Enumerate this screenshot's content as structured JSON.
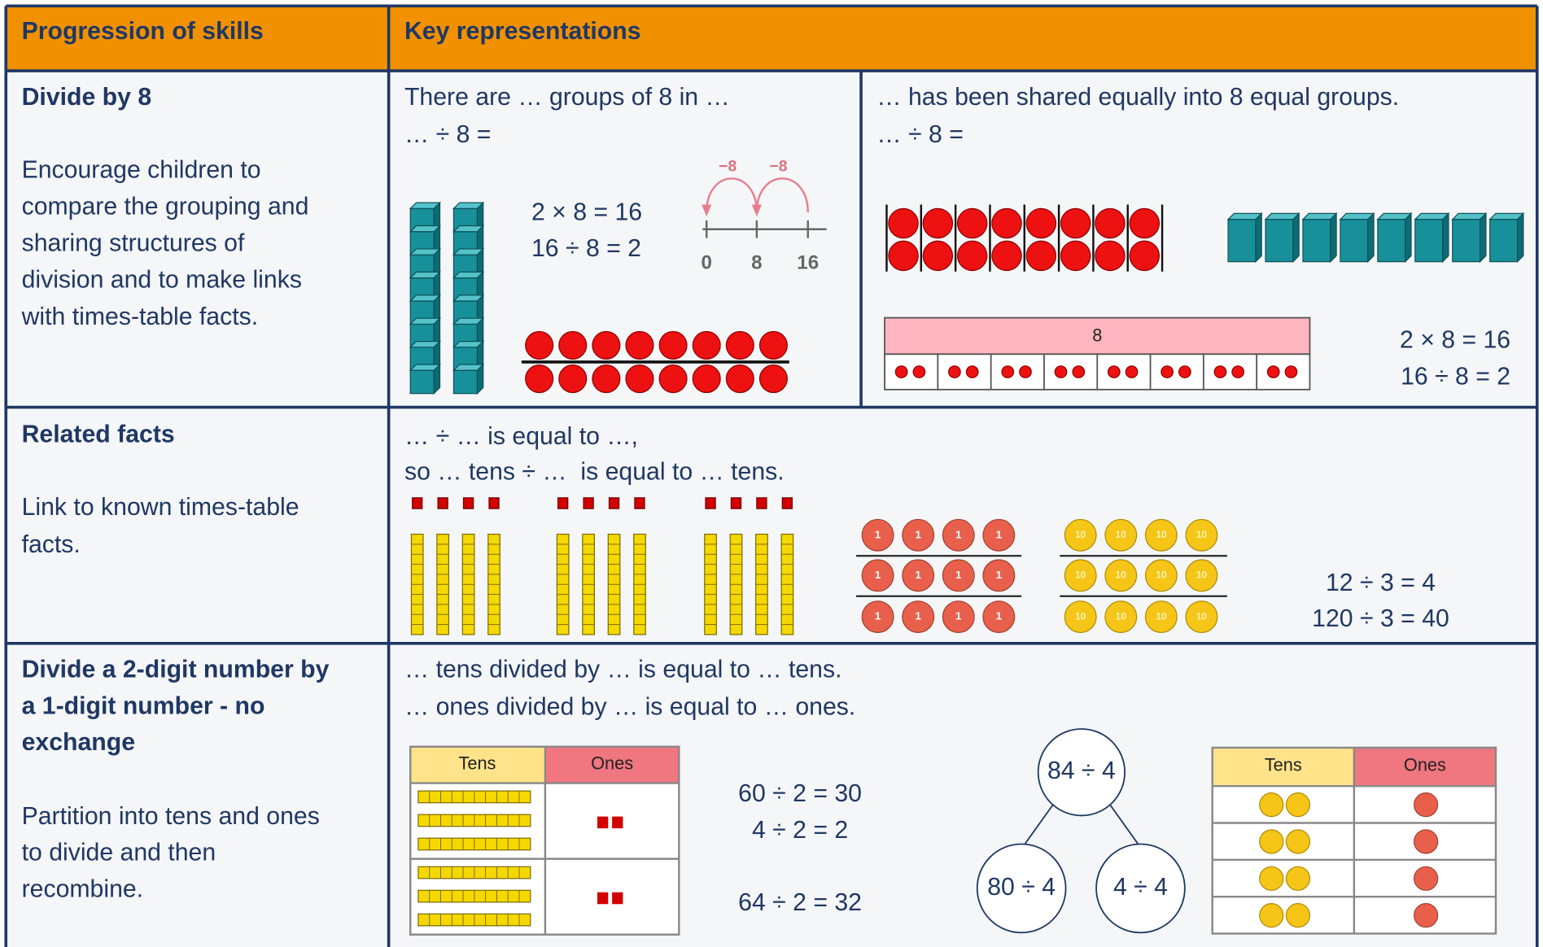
{
  "header": {
    "col1": "Progression of skills",
    "col2": "Key representations"
  },
  "rows": [
    {
      "skill": [
        "Divide by 8"
      ],
      "description": [
        "Encourage children to",
        "compare the grouping and",
        "sharing structures of",
        "division and to make links",
        "with times-table facts."
      ],
      "grouping": {
        "prompt": [
          "There are … groups of 8 in …",
          "… ÷ 8 ="
        ],
        "equations": [
          "2 × 8 = 16",
          "16 ÷ 8 = 2"
        ],
        "jump_labels": [
          "−8",
          "−8"
        ],
        "number_line_labels": [
          "0",
          "8",
          "16"
        ]
      },
      "sharing": {
        "prompt": [
          "… has been shared equally into 8 equal groups.",
          "… ÷ 8 ="
        ],
        "bar_label": "8",
        "equations": [
          "2 × 8 = 16",
          "16 ÷ 8 = 2"
        ]
      }
    },
    {
      "skill": [
        "Related facts"
      ],
      "description": [
        "Link to known times-table",
        "facts."
      ],
      "prompt": [
        "… ÷ … is equal to …,",
        "so … tens ÷ …  is equal to … tens."
      ],
      "counter_labels": {
        "ones": "1",
        "tens": "10"
      },
      "equations": [
        "12 ÷ 3 = 4",
        "120 ÷ 3 = 40"
      ]
    },
    {
      "skill": [
        "Divide a 2-digit number by",
        "a 1-digit number - no",
        "exchange"
      ],
      "description": [
        "Partition into tens and ones",
        "to divide and then",
        "recombine."
      ],
      "prompt": [
        "… tens divided by … is equal to … tens.",
        "… ones divided by … is equal to … ones."
      ],
      "place_value_table": {
        "headers": [
          "Tens",
          "Ones"
        ]
      },
      "equations": [
        "60 ÷ 2 = 30",
        "4 ÷ 2 = 2",
        "64 ÷ 2 = 32"
      ],
      "part_whole": {
        "whole": "84 ÷ 4",
        "parts": [
          "80 ÷ 4",
          "4 ÷ 4"
        ]
      },
      "counters_table": {
        "headers": [
          "Tens",
          "Ones"
        ]
      }
    }
  ]
}
